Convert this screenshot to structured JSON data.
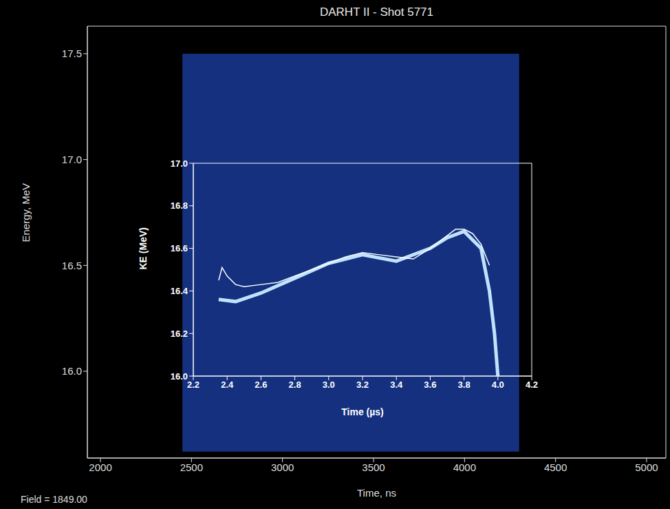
{
  "chart_data": [
    {
      "type": "spectrogram",
      "title": "DARHT II - Shot 5771",
      "xlabel": "Time, ns",
      "ylabel": "Energy, MeV",
      "annotation": "Field = 1849.00",
      "xlim": [
        1928,
        5106
      ],
      "xticks": [
        2000,
        2500,
        3000,
        3500,
        4000,
        4500,
        5000
      ],
      "ylim": [
        15.59,
        17.63
      ],
      "yticks": [
        {
          "value": 16,
          "label": "16.0"
        },
        16.5,
        {
          "value": 17,
          "label": "17.0"
        },
        17.5
      ],
      "signal_region": {
        "x": [
          2450,
          4300
        ],
        "y": [
          15.62,
          17.5
        ]
      },
      "color": "#14307f"
    },
    {
      "type": "line",
      "xlabel": "Time (µs)",
      "ylabel": "KE (MeV)",
      "xlim": [
        2.2,
        4.2
      ],
      "xticks": [
        2.2,
        2.4,
        2.6,
        2.8,
        {
          "value": 3,
          "label": "3.0"
        },
        3.2,
        3.4,
        3.6,
        3.8,
        {
          "value": 4,
          "label": "4.0"
        },
        4.2
      ],
      "ylim": [
        16,
        17
      ],
      "yticks": [
        {
          "value": 16,
          "label": "16.0"
        },
        16.2,
        16.4,
        16.6,
        16.8,
        {
          "value": 17,
          "label": "17.0"
        }
      ],
      "series": [
        {
          "color": "#bfe3ff",
          "x": [
            2.35,
            2.45,
            2.6,
            2.8,
            3.0,
            3.2,
            3.4,
            3.6,
            3.7,
            3.8,
            3.9,
            3.95,
            3.98,
            4.0
          ],
          "values": [
            16.36,
            16.35,
            16.39,
            16.46,
            16.53,
            16.57,
            16.54,
            16.6,
            16.65,
            16.68,
            16.6,
            16.4,
            16.2,
            16.0
          ]
        },
        {
          "color": "#ffffff",
          "x": [
            2.35,
            2.37,
            2.4,
            2.45,
            2.5,
            2.6,
            2.7,
            2.8,
            2.9,
            3.0,
            3.1,
            3.2,
            3.3,
            3.4,
            3.5,
            3.6,
            3.7,
            3.75,
            3.8,
            3.85,
            3.9,
            3.95
          ],
          "values": [
            16.45,
            16.51,
            16.47,
            16.43,
            16.42,
            16.43,
            16.44,
            16.47,
            16.5,
            16.53,
            16.56,
            16.58,
            16.57,
            16.56,
            16.55,
            16.6,
            16.66,
            16.69,
            16.69,
            16.67,
            16.62,
            16.52
          ]
        }
      ]
    }
  ]
}
